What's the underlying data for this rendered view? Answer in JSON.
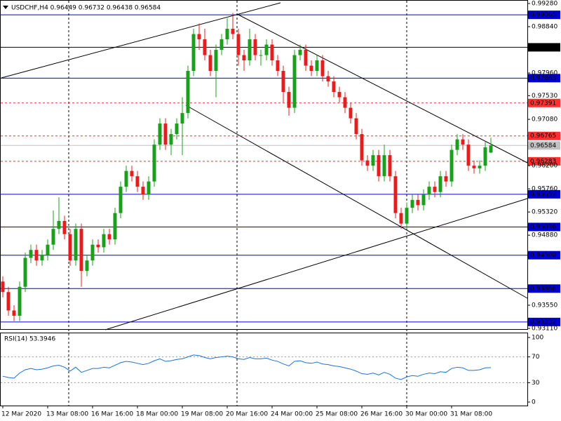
{
  "chart_data": {
    "type": "candlestick",
    "title": "USDCHF,H4  0.96449 0.96732 0.96438 0.96584",
    "bull_color": "#1e9e1e",
    "bear_color": "#e02020",
    "categories": [
      "12 Mar 2020",
      null,
      null,
      null,
      null,
      null,
      null,
      null,
      "13 Mar 08:00",
      null,
      null,
      null,
      null,
      null,
      null,
      null,
      "16 Mar 16:00",
      null,
      null,
      null,
      null,
      null,
      null,
      null,
      "18 Mar 00:00",
      null,
      null,
      null,
      null,
      null,
      null,
      null,
      "19 Mar 08:00",
      null,
      null,
      null,
      null,
      null,
      null,
      null,
      "20 Mar 16:00",
      null,
      null,
      null,
      null,
      null,
      null,
      null,
      "24 Mar 00:00",
      null,
      null,
      null,
      null,
      null,
      null,
      null,
      "25 Mar 08:00",
      null,
      null,
      null,
      null,
      null,
      null,
      null,
      "26 Mar 16:00",
      null,
      null,
      null,
      null,
      null,
      null,
      null,
      "30 Mar 00:00",
      null,
      null,
      null,
      null,
      null,
      null,
      null,
      "31 Mar 08:00",
      null,
      null,
      null,
      null,
      null,
      null,
      null
    ],
    "open": [
      0.94,
      0.938,
      0.9345,
      0.9335,
      0.939,
      0.9445,
      0.946,
      0.944,
      0.945,
      0.947,
      0.95,
      0.9515,
      0.949,
      0.944,
      0.95,
      0.942,
      0.944,
      0.947,
      0.9465,
      0.949,
      0.948,
      0.953,
      0.958,
      0.961,
      0.96,
      0.958,
      0.9565,
      0.959,
      0.966,
      0.97,
      0.966,
      0.968,
      0.97,
      0.972,
      0.98,
      0.987,
      0.986,
      0.983,
      0.98,
      0.984,
      0.986,
      0.988,
      0.987,
      0.983,
      0.982,
      0.986,
      0.983,
      0.983,
      0.985,
      0.982,
      0.98,
      0.976,
      0.973,
      0.983,
      0.984,
      0.981,
      0.98,
      0.982,
      0.979,
      0.978,
      0.976,
      0.975,
      0.973,
      0.971,
      0.968,
      0.963,
      0.962,
      0.964,
      0.96,
      0.964,
      0.96,
      0.953,
      0.951,
      0.954,
      0.9555,
      0.9545,
      0.9565,
      0.958,
      0.957,
      0.96,
      0.959,
      0.965,
      0.967,
      0.966,
      0.962,
      0.9615,
      0.962,
      0.96449
    ],
    "high": [
      0.941,
      0.939,
      0.9355,
      0.94,
      0.9455,
      0.947,
      0.947,
      0.946,
      0.948,
      0.9535,
      0.956,
      0.9525,
      0.95,
      0.951,
      0.951,
      0.945,
      0.948,
      0.948,
      0.95,
      0.95,
      0.954,
      0.959,
      0.962,
      0.962,
      0.961,
      0.959,
      0.96,
      0.967,
      0.971,
      0.971,
      0.969,
      0.971,
      0.975,
      0.981,
      0.988,
      0.989,
      0.988,
      0.984,
      0.985,
      0.987,
      0.99,
      0.991,
      0.988,
      0.984,
      0.988,
      0.987,
      0.984,
      0.986,
      0.986,
      0.983,
      0.981,
      0.977,
      0.984,
      0.985,
      0.985,
      0.982,
      0.983,
      0.983,
      0.98,
      0.979,
      0.977,
      0.976,
      0.974,
      0.972,
      0.969,
      0.964,
      0.965,
      0.965,
      0.966,
      0.965,
      0.961,
      0.954,
      0.955,
      0.9565,
      0.9565,
      0.9575,
      0.959,
      0.959,
      0.961,
      0.961,
      0.966,
      0.968,
      0.968,
      0.967,
      0.963,
      0.963,
      0.9665,
      0.96732
    ],
    "low": [
      0.937,
      0.9335,
      0.9325,
      0.9325,
      0.938,
      0.9435,
      0.943,
      0.943,
      0.944,
      0.946,
      0.949,
      0.948,
      0.943,
      0.943,
      0.939,
      0.941,
      0.943,
      0.9455,
      0.9455,
      0.947,
      0.947,
      0.952,
      0.957,
      0.959,
      0.957,
      0.9555,
      0.9555,
      0.958,
      0.965,
      0.965,
      0.964,
      0.967,
      0.964,
      0.971,
      0.979,
      0.984,
      0.982,
      0.979,
      0.975,
      0.983,
      0.985,
      0.986,
      0.981,
      0.98,
      0.981,
      0.982,
      0.981,
      0.982,
      0.981,
      0.979,
      0.974,
      0.9715,
      0.972,
      0.982,
      0.98,
      0.979,
      0.979,
      0.978,
      0.977,
      0.975,
      0.974,
      0.972,
      0.97,
      0.967,
      0.962,
      0.961,
      0.961,
      0.959,
      0.959,
      0.959,
      0.952,
      0.95,
      0.95,
      0.953,
      0.9535,
      0.9535,
      0.9555,
      0.956,
      0.956,
      0.958,
      0.958,
      0.964,
      0.965,
      0.961,
      0.9605,
      0.9605,
      0.961,
      0.96438
    ],
    "close": [
      0.938,
      0.9345,
      0.9335,
      0.939,
      0.9445,
      0.946,
      0.944,
      0.945,
      0.947,
      0.95,
      0.9515,
      0.949,
      0.944,
      0.95,
      0.942,
      0.944,
      0.947,
      0.9465,
      0.949,
      0.948,
      0.953,
      0.958,
      0.961,
      0.96,
      0.958,
      0.9565,
      0.959,
      0.966,
      0.97,
      0.966,
      0.968,
      0.97,
      0.972,
      0.98,
      0.987,
      0.986,
      0.983,
      0.98,
      0.984,
      0.986,
      0.988,
      0.987,
      0.983,
      0.982,
      0.986,
      0.983,
      0.983,
      0.985,
      0.982,
      0.98,
      0.976,
      0.973,
      0.983,
      0.984,
      0.981,
      0.98,
      0.982,
      0.979,
      0.978,
      0.976,
      0.975,
      0.973,
      0.971,
      0.968,
      0.963,
      0.962,
      0.964,
      0.96,
      0.964,
      0.96,
      0.953,
      0.951,
      0.954,
      0.9555,
      0.9545,
      0.9565,
      0.958,
      0.957,
      0.96,
      0.959,
      0.965,
      0.967,
      0.966,
      0.962,
      0.9615,
      0.962,
      0.9655,
      0.96584
    ],
    "ylim": [
      0.9311,
      0.9928
    ],
    "yticks": [
      {
        "value": 0.9928,
        "label": "0.99280"
      },
      {
        "value": 0.9884,
        "label": "0.98840"
      },
      {
        "value": 0.9796,
        "label": "0.97960"
      },
      {
        "value": 0.9753,
        "label": "0.97530"
      },
      {
        "value": 0.9708,
        "label": "0.97080"
      },
      {
        "value": 0.962,
        "label": "0.96200"
      },
      {
        "value": 0.9576,
        "label": "0.95760"
      },
      {
        "value": 0.9532,
        "label": "0.95320"
      },
      {
        "value": 0.9488,
        "label": "0.94880"
      },
      {
        "value": 0.9355,
        "label": "0.93550"
      },
      {
        "value": 0.9311,
        "label": "0.93110"
      }
    ],
    "levels": [
      {
        "value": 0.99065,
        "color": "#0000cc"
      },
      {
        "value": 0.98448,
        "color": "#000000"
      },
      {
        "value": 0.97863,
        "color": "#0000cc"
      },
      {
        "value": 0.97391,
        "color": "#ff3030",
        "dashed": true
      },
      {
        "value": 0.96765,
        "color": "#ff3030",
        "dashed": true
      },
      {
        "value": 0.96584,
        "color": "#c0c0c0"
      },
      {
        "value": 0.96283,
        "color": "#ff3030",
        "dashed": true
      },
      {
        "value": 0.95657,
        "color": "#0000cc"
      },
      {
        "value": 0.95036,
        "color": "#0000cc"
      },
      {
        "value": 0.945,
        "label": "0.94500",
        "color": "#0000cc"
      },
      {
        "value": 0.93866,
        "color": "#0000cc"
      },
      {
        "value": 0.93232,
        "color": "#0000cc"
      }
    ],
    "rsi_label": "RSI(14) 53.3946",
    "rsi_color": "#1e73d2",
    "rsi": [
      40,
      38,
      37,
      45,
      50,
      52,
      50,
      51,
      53,
      56,
      57,
      54,
      48,
      54,
      46,
      49,
      52,
      52,
      54,
      53,
      57,
      61,
      63,
      62,
      60,
      58,
      60,
      64,
      67,
      63,
      64,
      66,
      67,
      70,
      73,
      72,
      69,
      67,
      69,
      70,
      71,
      70,
      67,
      66,
      69,
      67,
      67,
      68,
      65,
      63,
      59,
      56,
      63,
      64,
      61,
      60,
      62,
      59,
      58,
      56,
      55,
      53,
      51,
      48,
      44,
      43,
      45,
      42,
      46,
      43,
      37,
      35,
      39,
      41,
      40,
      43,
      45,
      44,
      47,
      46,
      52,
      54,
      53,
      49,
      49,
      50,
      53,
      53.3946
    ],
    "rsi_lim": [
      0,
      100
    ],
    "rsi_ticks": [
      100,
      70,
      30,
      0
    ],
    "rsi_levels": [
      70,
      30
    ]
  }
}
